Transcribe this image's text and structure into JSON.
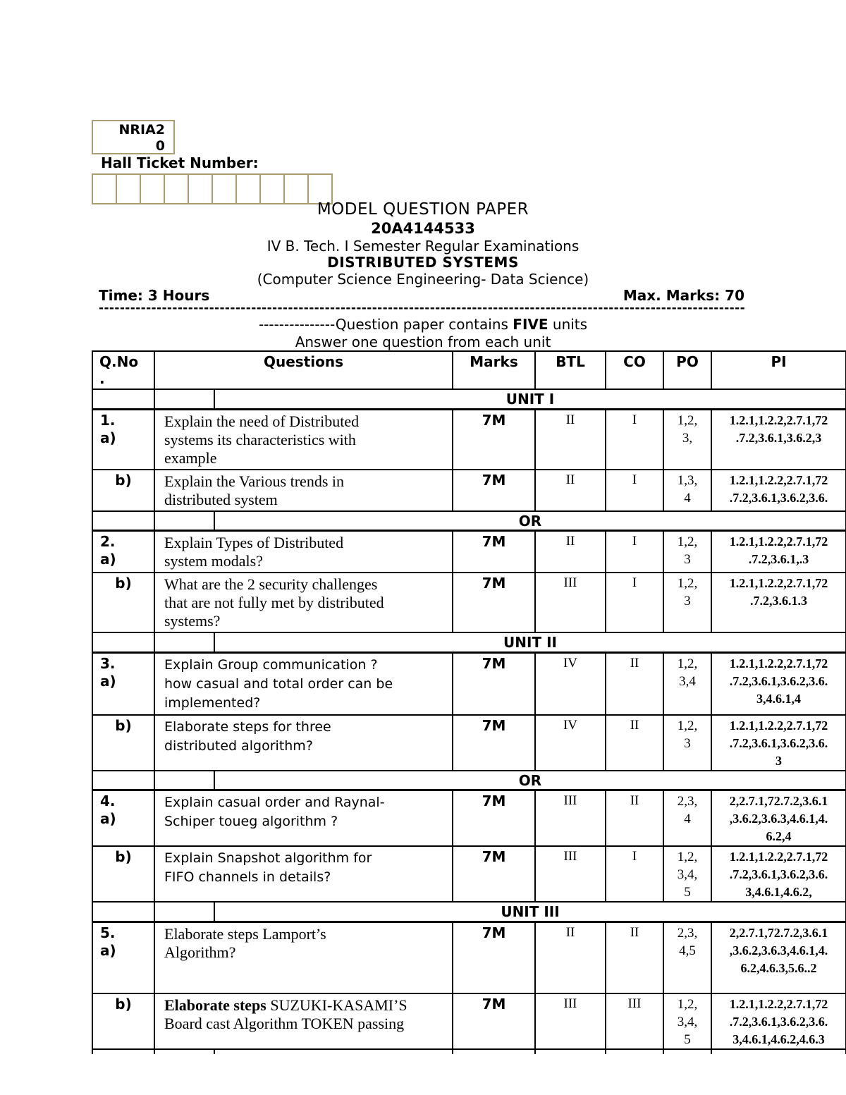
{
  "colors": {
    "box_border": "#ab9d72",
    "table_border": "#000000",
    "text": "#000000",
    "background": "#ffffff"
  },
  "header": {
    "code_box": "NRIA2\n0",
    "hall_ticket_label": "Hall Ticket Number:",
    "hall_ticket_cell_count": 10,
    "title": "MODEL QUESTION PAPER",
    "subject_code": "20A4144533",
    "session": "IV B. Tech. I Semester Regular Examinations",
    "subject": "DISTRIBUTED SYSTEMS",
    "branch": "(Computer Science Engineering- Data Science)",
    "time": "Time: 3 Hours",
    "max_marks": "Max. Marks: 70",
    "divider_dashes": "------------------------------------------------------------------------------------------------------------------------------------------------------",
    "units_note": {
      "prefix": "---------------Question paper contains ",
      "emphasis": "FIVE",
      "suffix": " units"
    },
    "answer_note": "Answer one question from each unit"
  },
  "table": {
    "columns": [
      "Q.No\n.",
      "Questions",
      "Marks",
      "BTL",
      "CO",
      "PO",
      "PI"
    ],
    "rows": [
      {
        "type": "unit",
        "label": "UNIT I"
      },
      {
        "type": "q",
        "id": "1a",
        "no": "1.\na)",
        "font": "serif",
        "question": "Explain the need of Distributed\nsystems its characteristics with\nexample",
        "marks": "7M",
        "btl": "II",
        "co": "I",
        "po": "1,2,\n3,",
        "pi": "1.2.1,1.2.2,2.7.1,72\n.7.2,3.6.1,3.6.2,3"
      },
      {
        "type": "q",
        "id": "1b",
        "no": "b)",
        "font": "serif",
        "question": "Explain the Various trends in\ndistributed system",
        "marks": "7M",
        "btl": "II",
        "co": "I",
        "po": "1,3,\n4",
        "pi": "1.2.1,1.2.2,2.7.1,72\n.7.2,3.6.1,3.6.2,3.6."
      },
      {
        "type": "unit",
        "label": "OR"
      },
      {
        "type": "q",
        "id": "2a",
        "no": "2.\na)",
        "font": "serif",
        "question": "   Explain Types of Distributed\nsystem modals?",
        "marks": "7M",
        "btl": "II",
        "co": "I",
        "po": "1,2,\n3",
        "pi": "1.2.1,1.2.2,2.7.1,72\n.7.2,3.6.1,.3"
      },
      {
        "type": "q",
        "id": "2b",
        "no": "b)",
        "font": "serif",
        "question": "What are the 2 security challenges\nthat are not fully met by distributed\nsystems?",
        "marks": "7M",
        "btl": "III",
        "co": "I",
        "po": "1,2,\n3",
        "pi": "1.2.1,1.2.2,2.7.1,72\n.7.2,3.6.1.3"
      },
      {
        "type": "unit",
        "label": "UNIT II"
      },
      {
        "type": "q",
        "id": "3a",
        "no": "3.\na)",
        "font": "sans",
        "question": "Explain Group communication ?\nhow casual and total order can be\nimplemented?",
        "marks": "7M",
        "btl": "IV",
        "co": "II",
        "po": "1,2,\n3,4",
        "pi": "1.2.1,1.2.2,2.7.1,72\n.7.2,3.6.1,3.6.2,3.6.\n3,4.6.1,4"
      },
      {
        "type": "q",
        "id": "3b",
        "no": "b)",
        "font": "sans",
        "question": "Elaborate steps for three\ndistributed algorithm?",
        "marks": "7M",
        "btl": "IV",
        "co": "II",
        "po": "1,2,\n3",
        "pi": "1.2.1,1.2.2,2.7.1,72\n.7.2,3.6.1,3.6.2,3.6.\n3"
      },
      {
        "type": "unit",
        "label": "OR"
      },
      {
        "type": "q",
        "id": "4a",
        "no": "4.\na)",
        "font": "sans",
        "question": "Explain casual order and Raynal-\nSchiper toueg algorithm ?",
        "marks": "7M",
        "btl": "III",
        "co": "II",
        "po": "2,3,\n4",
        "pi": "2,2.7.1,72.7.2,3.6.1\n,3.6.2,3.6.3,4.6.1,4.\n6.2,4"
      },
      {
        "type": "q",
        "id": "4b",
        "no": "b)",
        "font": "sans",
        "question": "Explain Snapshot algorithm for\nFIFO channels in details?",
        "marks": "7M",
        "btl": "III",
        "co": "I",
        "po": "1,2,\n3,4,\n5",
        "pi": "1.2.1,1.2.2,2.7.1,72\n.7.2,3.6.1,3.6.2,3.6.\n3,4.6.1,4.6.2,"
      },
      {
        "type": "unit",
        "label": "UNIT III"
      },
      {
        "type": "q",
        "id": "5a",
        "no": "5.\na)",
        "font": "serif",
        "question": "Elaborate steps Lamport’s\nAlgorithm?",
        "marks": "7M",
        "btl": "II",
        "co": "II",
        "po": "2,3,\n4,5",
        "pi": "2,2.7.1,72.7.2,3.6.1\n,3.6.2,3.6.3,4.6.1,4.\n6.2,4.6.3,5.6..2"
      },
      {
        "type": "q",
        "id": "5b",
        "no": "b)",
        "font": "serif",
        "question_bold_prefix": "Elaborate steps ",
        "question": " SUZUKI-KASAMI’S\nBoard cast Algorithm TOKEN passing",
        "marks": "7M",
        "btl": "III",
        "co": "III",
        "po": "1,2,\n3,4,\n5",
        "pi": "1.2.1,1.2.2,2.7.1,72\n.7.2,3.6.1,3.6.2,3.6.\n3,4.6.1,4.6.2,4.6.3"
      }
    ]
  }
}
